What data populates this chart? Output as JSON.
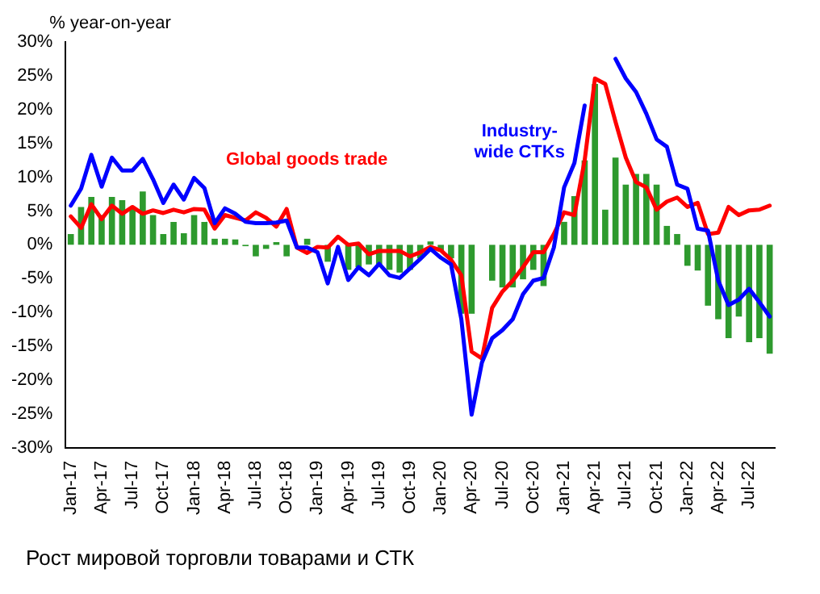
{
  "chart_data": {
    "type": "bar",
    "ylabel": "% year-on-year",
    "categories": [
      "Jan-17",
      null,
      null,
      "Apr-17",
      null,
      null,
      "Jul-17",
      null,
      null,
      "Oct-17",
      null,
      null,
      "Jan-18",
      null,
      null,
      "Apr-18",
      null,
      null,
      "Jul-18",
      null,
      null,
      "Oct-18",
      null,
      null,
      "Jan-19",
      null,
      null,
      "Apr-19",
      null,
      null,
      "Jul-19",
      null,
      null,
      "Oct-19",
      null,
      null,
      "Jan-20",
      null,
      null,
      "Apr-20",
      null,
      null,
      "Jul-20",
      null,
      null,
      "Oct-20",
      null,
      null,
      "Jan-21",
      null,
      null,
      "Apr-21",
      null,
      null,
      "Jul-21",
      null,
      null,
      "Oct-21",
      null,
      null,
      "Jan-22",
      null,
      null,
      "Apr-22",
      null,
      null,
      "Jul-22",
      null,
      null
    ],
    "series": [
      {
        "color": "#2e9a2e",
        "values": [
          1.6,
          5.6,
          7.1,
          4.4,
          7.1,
          6.6,
          5.6,
          7.9,
          4.4,
          1.6,
          3.4,
          1.7,
          4.4,
          3.4,
          0.9,
          0.9,
          0.8,
          -0.2,
          -1.7,
          -0.6,
          0.4,
          -1.7,
          null,
          0.9,
          null,
          -2.5,
          null,
          -3.7,
          -3.3,
          -2.9,
          -2.9,
          -3.7,
          -4.1,
          -3.7,
          -2,
          0.5,
          -1,
          -2,
          -10.2,
          -10.2,
          0,
          -5.3,
          -6.3,
          -6.3,
          -5.1,
          -3.7,
          -6.1,
          null,
          3.4,
          7.2,
          12.5,
          23.8,
          5.2,
          12.9,
          8.9,
          10.5,
          10.5,
          8.9,
          2.8,
          1.6,
          -3.1,
          -3.8,
          -9,
          -11,
          -13.8,
          -10.6,
          -14.4,
          -13.8,
          -16.1
        ]
      },
      {
        "type": "line",
        "name": "Industry-wide CTKs",
        "color": "#0000ff",
        "values": [
          5.8,
          8.3,
          13.3,
          8.6,
          12.9,
          11,
          11,
          12.7,
          9.7,
          6.2,
          8.9,
          6.7,
          9.9,
          8.4,
          3.2,
          5.4,
          4.6,
          3.4,
          3.2,
          3.2,
          3.3,
          3.6,
          -0.4,
          -0.4,
          -1.1,
          -5.7,
          -0.3,
          -5.2,
          -3.3,
          -4.5,
          -2.8,
          -4.5,
          -4.9,
          -3.5,
          -2.1,
          -0.6,
          -1.9,
          -2.9,
          -11,
          -25.1,
          -17.4,
          -13.8,
          -12.6,
          -11,
          -7.3,
          -5.3,
          -4.9,
          -0.4,
          8.5,
          12.1,
          20.6,
          null,
          null,
          27.5,
          24.6,
          22.6,
          19.4,
          15.6,
          14.5,
          8.9,
          8.3,
          2.4,
          2.1,
          -5.3,
          -8.9,
          -8.1,
          -6.5,
          -8.5,
          -10.6
        ]
      },
      {
        "type": "line",
        "name": "Global goods trade",
        "color": "#ff0000",
        "values": [
          4.2,
          2.5,
          6,
          3.8,
          5.8,
          4.6,
          5.6,
          4.6,
          5.1,
          4.7,
          5.2,
          4.8,
          5.3,
          5.2,
          2.4,
          4.4,
          4,
          3.6,
          4.8,
          4,
          2.7,
          5.3,
          -0.4,
          -1.2,
          -0.3,
          -0.4,
          1.2,
          0,
          0.2,
          -1.4,
          -0.9,
          -0.9,
          -0.9,
          -1.7,
          -1.1,
          -0.3,
          -0.8,
          -2.2,
          -4.5,
          -15.8,
          -16.8,
          -9.3,
          -6.9,
          -5.3,
          -3.3,
          -1.1,
          -1.1,
          1.6,
          4.8,
          4.4,
          12.5,
          24.6,
          23.8,
          18.2,
          12.9,
          9.3,
          8.5,
          5.2,
          6.4,
          7,
          5.6,
          6.2,
          1.6,
          1.8,
          5.6,
          4.4,
          5.1,
          5.2,
          5.8
        ]
      }
    ],
    "ylim": [
      -30,
      30
    ],
    "yticks": [
      {
        "value": -30,
        "label": "-30%"
      },
      {
        "value": -25,
        "label": "-25%"
      },
      {
        "value": -20,
        "label": "-20%"
      },
      {
        "value": -15,
        "label": "-15%"
      },
      {
        "value": -10,
        "label": "-10%"
      },
      {
        "value": -5,
        "label": "-5%"
      },
      {
        "value": 0,
        "label": "0%"
      },
      {
        "value": 5,
        "label": "5%"
      },
      {
        "value": 10,
        "label": "10%"
      },
      {
        "value": 15,
        "label": "15%"
      },
      {
        "value": 20,
        "label": "20%"
      },
      {
        "value": 25,
        "label": "25%"
      },
      {
        "value": 30,
        "label": "30%"
      }
    ],
    "grid": false,
    "legend": false,
    "marker": "none",
    "line_style": "solid",
    "annotations": [
      "Рост мировой торговли товарами и СТК"
    ]
  }
}
